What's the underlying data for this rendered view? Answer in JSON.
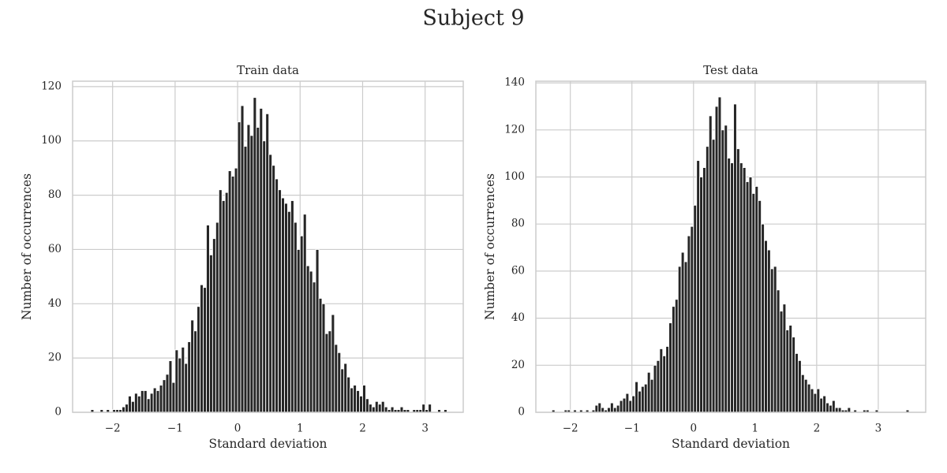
{
  "title": "Subject 9",
  "chart_data": [
    {
      "type": "histogram",
      "title": "Train data",
      "xlabel": "Standard deviation",
      "ylabel": "Number of occurrences",
      "color": "#262626",
      "grid": true,
      "xlim": [
        -2.64,
        3.61
      ],
      "ylim": [
        0,
        122
      ],
      "xticks": [
        {
          "value": -2,
          "label": "−2"
        },
        {
          "value": -1,
          "label": "−1"
        },
        0,
        1,
        2,
        3
      ],
      "yticks": [
        0,
        20,
        40,
        60,
        80,
        100,
        120
      ],
      "bins": [
        -2.35,
        -2.3,
        -2.25,
        -2.2,
        -2.15,
        -2.1,
        -2.05,
        -2,
        -1.95,
        -1.9,
        -1.85,
        -1.8,
        -1.75,
        -1.7,
        -1.65,
        -1.6,
        -1.55,
        -1.5,
        -1.45,
        -1.4,
        -1.35,
        -1.3,
        -1.25,
        -1.2,
        -1.15,
        -1.1,
        -1.05,
        -1,
        -0.95,
        -0.9,
        -0.85,
        -0.8,
        -0.75,
        -0.7,
        -0.65,
        -0.6,
        -0.55,
        -0.5,
        -0.45,
        -0.4,
        -0.35,
        -0.3,
        -0.25,
        -0.2,
        -0.15,
        -0.1,
        -0.05,
        0,
        0.05,
        0.1,
        0.15,
        0.2,
        0.25,
        0.3,
        0.35,
        0.4,
        0.45,
        0.5,
        0.55,
        0.6,
        0.65,
        0.7,
        0.75,
        0.8,
        0.85,
        0.9,
        0.95,
        1,
        1.05,
        1.1,
        1.15,
        1.2,
        1.25,
        1.3,
        1.35,
        1.4,
        1.45,
        1.5,
        1.55,
        1.6,
        1.65,
        1.7,
        1.75,
        1.8,
        1.85,
        1.9,
        1.95,
        2,
        2.05,
        2.1,
        2.15,
        2.2,
        2.25,
        2.3,
        2.35,
        2.4,
        2.45,
        2.5,
        2.55,
        2.6,
        2.65,
        2.7,
        2.75,
        2.8,
        2.85,
        2.9,
        2.95,
        3,
        3.05,
        3.1,
        3.15,
        3.2,
        3.25,
        3.3,
        3.35
      ],
      "values": [
        1,
        0,
        0,
        1,
        0,
        1,
        0,
        1,
        1,
        1,
        2,
        3,
        6,
        4,
        7,
        6,
        8,
        8,
        5,
        7,
        9,
        8,
        10,
        12,
        14,
        19,
        11,
        23,
        20,
        24,
        18,
        26,
        34,
        30,
        39,
        47,
        46,
        69,
        58,
        64,
        70,
        82,
        78,
        81,
        89,
        87,
        90,
        107,
        113,
        98,
        106,
        102,
        116,
        105,
        112,
        100,
        110,
        95,
        91,
        86,
        82,
        79,
        77,
        74,
        78,
        70,
        60,
        65,
        73,
        54,
        52,
        48,
        60,
        42,
        40,
        29,
        30,
        36,
        25,
        22,
        16,
        18,
        13,
        9,
        10,
        8,
        6,
        10,
        5,
        3,
        2,
        4,
        3,
        4,
        2,
        1,
        2,
        1,
        1,
        2,
        1,
        1,
        0,
        1,
        1,
        1,
        3,
        1,
        3,
        0,
        0,
        1,
        0,
        1
      ]
    },
    {
      "type": "histogram",
      "title": "Test data",
      "xlabel": "Standard deviation",
      "ylabel": "Number of occurrences",
      "color": "#262626",
      "grid": true,
      "xlim": [
        -2.56,
        3.77
      ],
      "ylim": [
        0,
        140.7
      ],
      "xticks": [
        {
          "value": -2,
          "label": "−2"
        },
        {
          "value": -1,
          "label": "−1"
        },
        0,
        1,
        2,
        3
      ],
      "yticks": [
        0,
        20,
        40,
        60,
        80,
        100,
        120,
        140
      ],
      "bins": [
        -2.3,
        -2.25,
        -2.2,
        -2.15,
        -2.1,
        -2.05,
        -2,
        -1.95,
        -1.9,
        -1.85,
        -1.8,
        -1.75,
        -1.7,
        -1.65,
        -1.6,
        -1.55,
        -1.5,
        -1.45,
        -1.4,
        -1.35,
        -1.3,
        -1.25,
        -1.2,
        -1.15,
        -1.1,
        -1.05,
        -1,
        -0.95,
        -0.9,
        -0.85,
        -0.8,
        -0.75,
        -0.7,
        -0.65,
        -0.6,
        -0.55,
        -0.5,
        -0.45,
        -0.4,
        -0.35,
        -0.3,
        -0.25,
        -0.2,
        -0.15,
        -0.1,
        -0.05,
        0,
        0.05,
        0.1,
        0.15,
        0.2,
        0.25,
        0.3,
        0.35,
        0.4,
        0.45,
        0.5,
        0.55,
        0.6,
        0.65,
        0.7,
        0.75,
        0.8,
        0.85,
        0.9,
        0.95,
        1,
        1.05,
        1.1,
        1.15,
        1.2,
        1.25,
        1.3,
        1.35,
        1.4,
        1.45,
        1.5,
        1.55,
        1.6,
        1.65,
        1.7,
        1.75,
        1.8,
        1.85,
        1.9,
        1.95,
        2,
        2.05,
        2.1,
        2.15,
        2.2,
        2.25,
        2.3,
        2.35,
        2.4,
        2.45,
        2.5,
        2.55,
        2.6,
        2.65,
        2.7,
        2.75,
        2.8,
        2.85,
        2.9,
        2.95,
        3,
        3.05,
        3.1,
        3.15,
        3.2,
        3.25,
        3.3,
        3.35,
        3.4,
        3.45,
        3.5
      ],
      "values": [
        1,
        0,
        0,
        0,
        1,
        1,
        0,
        1,
        0,
        1,
        0,
        1,
        0,
        1,
        3,
        4,
        2,
        1,
        2,
        4,
        2,
        3,
        5,
        6,
        8,
        5,
        7,
        13,
        9,
        11,
        12,
        17,
        14,
        20,
        22,
        27,
        24,
        28,
        38,
        45,
        48,
        62,
        68,
        64,
        75,
        79,
        88,
        107,
        100,
        104,
        113,
        126,
        116,
        130,
        134,
        120,
        122,
        108,
        106,
        131,
        112,
        106,
        104,
        98,
        100,
        93,
        96,
        90,
        80,
        73,
        69,
        61,
        62,
        52,
        43,
        46,
        35,
        37,
        32,
        25,
        22,
        16,
        14,
        12,
        10,
        8,
        10,
        6,
        7,
        4,
        3,
        5,
        2,
        2,
        1,
        1,
        2,
        0,
        1,
        0,
        0,
        1,
        1,
        0,
        0,
        1,
        0,
        0,
        0,
        0,
        0,
        0,
        0,
        0,
        0,
        1
      ]
    }
  ]
}
